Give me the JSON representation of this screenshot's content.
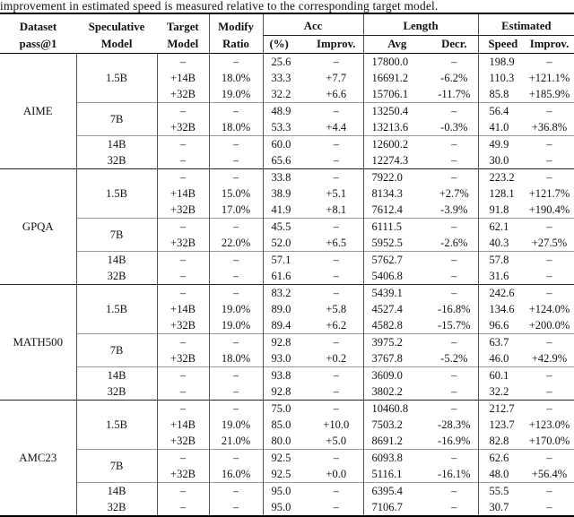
{
  "caption": "improvement in estimated speed is measured relative to the corresponding target model.",
  "header": {
    "dataset": [
      "Dataset",
      "pass@1"
    ],
    "speculative": [
      "Speculative",
      "Model"
    ],
    "target": [
      "Target",
      "Model"
    ],
    "modify": [
      "Modify",
      "Ratio"
    ],
    "groups": [
      {
        "label": "Acc",
        "sub": [
          "(%)",
          "Improv."
        ]
      },
      {
        "label": "Length",
        "sub": [
          "Avg",
          "Decr."
        ]
      },
      {
        "label": "Estimated",
        "sub": [
          "Speed",
          "Improv."
        ]
      }
    ]
  },
  "table": {
    "columns": [
      "Target Model",
      "Modify Ratio",
      "Acc (%)",
      "Acc Improv.",
      "Length Avg",
      "Length Decr.",
      "Estimated Speed",
      "Estimated Improv."
    ],
    "sections": [
      {
        "dataset": "AIME",
        "blocks": [
          {
            "rows": [
              {
                "spec": "1.5B",
                "span": 3,
                "cells": [
                  "–",
                  "–",
                  "25.6",
                  "–",
                  "17800.0",
                  "–",
                  "198.9",
                  "–"
                ]
              },
              {
                "cells": [
                  "+14B",
                  "18.0%",
                  "33.3",
                  "+7.7",
                  "16691.2",
                  "-6.2%",
                  "110.3",
                  "+121.1%"
                ]
              },
              {
                "cells": [
                  "+32B",
                  "19.0%",
                  "32.2",
                  "+6.6",
                  "15706.1",
                  "-11.7%",
                  "85.8",
                  "+185.9%"
                ]
              }
            ]
          },
          {
            "rows": [
              {
                "spec": "7B",
                "span": 2,
                "cells": [
                  "–",
                  "–",
                  "48.9",
                  "–",
                  "13250.4",
                  "–",
                  "56.4",
                  "–"
                ]
              },
              {
                "cells": [
                  "+32B",
                  "18.0%",
                  "53.3",
                  "+4.4",
                  "13213.6",
                  "-0.3%",
                  "41.0",
                  "+36.8%"
                ]
              }
            ]
          },
          {
            "rows": [
              {
                "spec": "14B",
                "span": 1,
                "cells": [
                  "–",
                  "–",
                  "60.0",
                  "–",
                  "12600.2",
                  "–",
                  "49.9",
                  "–"
                ]
              },
              {
                "spec": "32B",
                "span": 1,
                "cells": [
                  "–",
                  "–",
                  "65.6",
                  "–",
                  "12274.3",
                  "–",
                  "30.0",
                  "–"
                ]
              }
            ]
          }
        ]
      },
      {
        "dataset": "GPQA",
        "blocks": [
          {
            "rows": [
              {
                "spec": "1.5B",
                "span": 3,
                "cells": [
                  "–",
                  "–",
                  "33.8",
                  "–",
                  "7922.0",
                  "–",
                  "223.2",
                  "–"
                ]
              },
              {
                "cells": [
                  "+14B",
                  "15.0%",
                  "38.9",
                  "+5.1",
                  "8134.3",
                  "+2.7%",
                  "128.1",
                  "+121.7%"
                ]
              },
              {
                "cells": [
                  "+32B",
                  "17.0%",
                  "41.9",
                  "+8.1",
                  "7612.4",
                  "-3.9%",
                  "91.8",
                  "+190.4%"
                ]
              }
            ]
          },
          {
            "rows": [
              {
                "spec": "7B",
                "span": 2,
                "cells": [
                  "–",
                  "–",
                  "45.5",
                  "–",
                  "6111.5",
                  "–",
                  "62.1",
                  "–"
                ]
              },
              {
                "cells": [
                  "+32B",
                  "22.0%",
                  "52.0",
                  "+6.5",
                  "5952.5",
                  "-2.6%",
                  "40.3",
                  "+27.5%"
                ]
              }
            ]
          },
          {
            "rows": [
              {
                "spec": "14B",
                "span": 1,
                "cells": [
                  "–",
                  "–",
                  "57.1",
                  "–",
                  "5762.7",
                  "–",
                  "57.8",
                  "–"
                ]
              },
              {
                "spec": "32B",
                "span": 1,
                "cells": [
                  "–",
                  "–",
                  "61.6",
                  "–",
                  "5406.8",
                  "–",
                  "31.6",
                  "–"
                ]
              }
            ]
          }
        ]
      },
      {
        "dataset": "MATH500",
        "blocks": [
          {
            "rows": [
              {
                "spec": "1.5B",
                "span": 3,
                "cells": [
                  "–",
                  "–",
                  "83.2",
                  "–",
                  "5439.1",
                  "–",
                  "242.6",
                  "–"
                ]
              },
              {
                "cells": [
                  "+14B",
                  "19.0%",
                  "89.0",
                  "+5.8",
                  "4527.4",
                  "-16.8%",
                  "134.6",
                  "+124.0%"
                ]
              },
              {
                "cells": [
                  "+32B",
                  "19.0%",
                  "89.4",
                  "+6.2",
                  "4582.8",
                  "-15.7%",
                  "96.6",
                  "+200.0%"
                ]
              }
            ]
          },
          {
            "rows": [
              {
                "spec": "7B",
                "span": 2,
                "cells": [
                  "–",
                  "–",
                  "92.8",
                  "–",
                  "3975.2",
                  "–",
                  "63.7",
                  "–"
                ]
              },
              {
                "cells": [
                  "+32B",
                  "18.0%",
                  "93.0",
                  "+0.2",
                  "3767.8",
                  "-5.2%",
                  "46.0",
                  "+42.9%"
                ]
              }
            ]
          },
          {
            "rows": [
              {
                "spec": "14B",
                "span": 1,
                "cells": [
                  "–",
                  "–",
                  "93.8",
                  "–",
                  "3609.0",
                  "–",
                  "60.1",
                  "–"
                ]
              },
              {
                "spec": "32B",
                "span": 1,
                "cells": [
                  "–",
                  "–",
                  "92.8",
                  "–",
                  "3802.2",
                  "–",
                  "32.2",
                  "–"
                ]
              }
            ]
          }
        ]
      },
      {
        "dataset": "AMC23",
        "blocks": [
          {
            "rows": [
              {
                "spec": "1.5B",
                "span": 3,
                "cells": [
                  "–",
                  "–",
                  "75.0",
                  "–",
                  "10460.8",
                  "–",
                  "212.7",
                  "–"
                ]
              },
              {
                "cells": [
                  "+14B",
                  "19.0%",
                  "85.0",
                  "+10.0",
                  "7503.2",
                  "-28.3%",
                  "123.7",
                  "+123.0%"
                ]
              },
              {
                "cells": [
                  "+32B",
                  "21.0%",
                  "80.0",
                  "+5.0",
                  "8691.2",
                  "-16.9%",
                  "82.8",
                  "+170.0%"
                ]
              }
            ]
          },
          {
            "rows": [
              {
                "spec": "7B",
                "span": 2,
                "cells": [
                  "–",
                  "–",
                  "92.5",
                  "–",
                  "6093.8",
                  "–",
                  "62.6",
                  "–"
                ]
              },
              {
                "cells": [
                  "+32B",
                  "16.0%",
                  "92.5",
                  "+0.0",
                  "5116.1",
                  "-16.1%",
                  "48.0",
                  "+56.4%"
                ]
              }
            ]
          },
          {
            "rows": [
              {
                "spec": "14B",
                "span": 1,
                "cells": [
                  "–",
                  "–",
                  "95.0",
                  "–",
                  "6395.4",
                  "–",
                  "55.5",
                  "–"
                ]
              },
              {
                "spec": "32B",
                "span": 1,
                "cells": [
                  "–",
                  "–",
                  "95.0",
                  "–",
                  "7106.7",
                  "–",
                  "30.7",
                  "–"
                ]
              }
            ]
          }
        ]
      }
    ]
  }
}
